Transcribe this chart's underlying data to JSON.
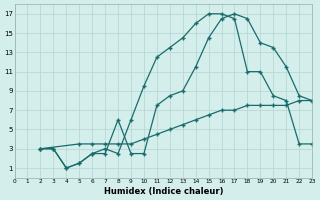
{
  "xlabel": "Humidex (Indice chaleur)",
  "bg_color": "#d4eeec",
  "grid_color": "#b8d8d6",
  "line_color": "#1a6b6b",
  "xlim": [
    0,
    23
  ],
  "ylim": [
    0,
    18
  ],
  "xticks": [
    0,
    1,
    2,
    3,
    4,
    5,
    6,
    7,
    8,
    9,
    10,
    11,
    12,
    13,
    14,
    15,
    16,
    17,
    18,
    19,
    20,
    21,
    22,
    23
  ],
  "yticks": [
    1,
    3,
    5,
    7,
    9,
    11,
    13,
    15,
    17
  ],
  "curve1_x": [
    2,
    3,
    4,
    5,
    6,
    7,
    8,
    9,
    10,
    11,
    12,
    13,
    14,
    15,
    16,
    17,
    18,
    19,
    20,
    21,
    22,
    23
  ],
  "curve1_y": [
    3,
    3,
    1,
    1.5,
    2.5,
    3,
    2.5,
    6,
    9.5,
    12.5,
    13.5,
    14.5,
    16,
    17,
    17,
    16.5,
    11,
    11,
    8.5,
    8,
    3.5,
    3.5
  ],
  "curve2_x": [
    2,
    3,
    4,
    5,
    6,
    7,
    8,
    9,
    10,
    11,
    12,
    13,
    14,
    15,
    16,
    17,
    18,
    19,
    20,
    21,
    22,
    23
  ],
  "curve2_y": [
    3,
    3,
    1,
    1.5,
    2.5,
    2.5,
    6,
    2.5,
    2.5,
    7.5,
    8.5,
    9,
    11.5,
    14.5,
    16.5,
    17,
    16.5,
    14,
    13.5,
    11.5,
    8.5,
    8
  ],
  "curve3_x": [
    2,
    5,
    6,
    7,
    8,
    9,
    10,
    11,
    12,
    13,
    14,
    15,
    16,
    17,
    18,
    19,
    20,
    21,
    22,
    23
  ],
  "curve3_y": [
    3,
    3.5,
    3.5,
    3.5,
    3.5,
    3.5,
    4,
    4.5,
    5,
    5.5,
    6,
    6.5,
    7,
    7,
    7.5,
    7.5,
    7.5,
    7.5,
    8,
    8
  ]
}
